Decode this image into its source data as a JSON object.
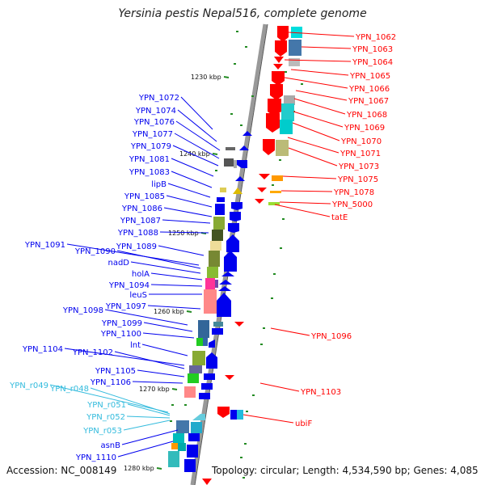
{
  "title": "Yersinia pestis Nepal516, complete genome",
  "footer": {
    "accession": "Accession: NC_008149",
    "topology": "Topology: circular; Length: 4,534,590 bp; Genes: 4,085"
  },
  "colors": {
    "forward": "#ff0000",
    "reverse": "#0000ee",
    "rna": "#33bbdd",
    "backbone": "#999999",
    "tick": "#228b22"
  },
  "ruler": [
    {
      "label": "1230 kbp"
    },
    {
      "label": "1240 kbp"
    },
    {
      "label": "1250 kbp"
    },
    {
      "label": "1260 kbp"
    },
    {
      "label": "1270 kbp"
    },
    {
      "label": "1280 kbp"
    }
  ],
  "right_labels": [
    {
      "text": "YPN_1062"
    },
    {
      "text": "YPN_1063"
    },
    {
      "text": "YPN_1064"
    },
    {
      "text": "YPN_1065"
    },
    {
      "text": "YPN_1066"
    },
    {
      "text": "YPN_1067"
    },
    {
      "text": "YPN_1068"
    },
    {
      "text": "YPN_1069"
    },
    {
      "text": "YPN_1070"
    },
    {
      "text": "YPN_1071"
    },
    {
      "text": "YPN_1073"
    },
    {
      "text": "YPN_1075"
    },
    {
      "text": "YPN_1078"
    },
    {
      "text": "YPN_5000"
    },
    {
      "text": "tatE"
    },
    {
      "text": "YPN_1096"
    },
    {
      "text": "YPN_1103"
    },
    {
      "text": "ubiF"
    }
  ],
  "left_labels": [
    {
      "text": "YPN_1072",
      "kind": "gene"
    },
    {
      "text": "YPN_1074",
      "kind": "gene"
    },
    {
      "text": "YPN_1076",
      "kind": "gene"
    },
    {
      "text": "YPN_1077",
      "kind": "gene"
    },
    {
      "text": "YPN_1079",
      "kind": "gene"
    },
    {
      "text": "YPN_1081",
      "kind": "gene"
    },
    {
      "text": "YPN_1083",
      "kind": "gene"
    },
    {
      "text": "lipB",
      "kind": "gene"
    },
    {
      "text": "YPN_1085",
      "kind": "gene"
    },
    {
      "text": "YPN_1086",
      "kind": "gene"
    },
    {
      "text": "YPN_1087",
      "kind": "gene"
    },
    {
      "text": "YPN_1088",
      "kind": "gene"
    },
    {
      "text": "YPN_1091",
      "kind": "gene"
    },
    {
      "text": "YPN_1090",
      "kind": "gene"
    },
    {
      "text": "YPN_1089",
      "kind": "gene"
    },
    {
      "text": "nadD",
      "kind": "gene"
    },
    {
      "text": "holA",
      "kind": "gene"
    },
    {
      "text": "YPN_1094",
      "kind": "gene"
    },
    {
      "text": "leuS",
      "kind": "gene"
    },
    {
      "text": "YPN_1097",
      "kind": "gene"
    },
    {
      "text": "YPN_1098",
      "kind": "gene"
    },
    {
      "text": "YPN_1099",
      "kind": "gene"
    },
    {
      "text": "YPN_1100",
      "kind": "gene"
    },
    {
      "text": "lnt",
      "kind": "gene"
    },
    {
      "text": "YPN_1104",
      "kind": "gene"
    },
    {
      "text": "YPN_1102",
      "kind": "gene"
    },
    {
      "text": "YPN_1105",
      "kind": "gene"
    },
    {
      "text": "YPN_1106",
      "kind": "gene"
    },
    {
      "text": "YPN_r049",
      "kind": "rna"
    },
    {
      "text": "YPN_r048",
      "kind": "rna"
    },
    {
      "text": "YPN_r051",
      "kind": "rna"
    },
    {
      "text": "YPN_r052",
      "kind": "rna"
    },
    {
      "text": "YPN_r053",
      "kind": "rna"
    },
    {
      "text": "asnB",
      "kind": "gene"
    },
    {
      "text": "YPN_1110",
      "kind": "gene"
    }
  ]
}
